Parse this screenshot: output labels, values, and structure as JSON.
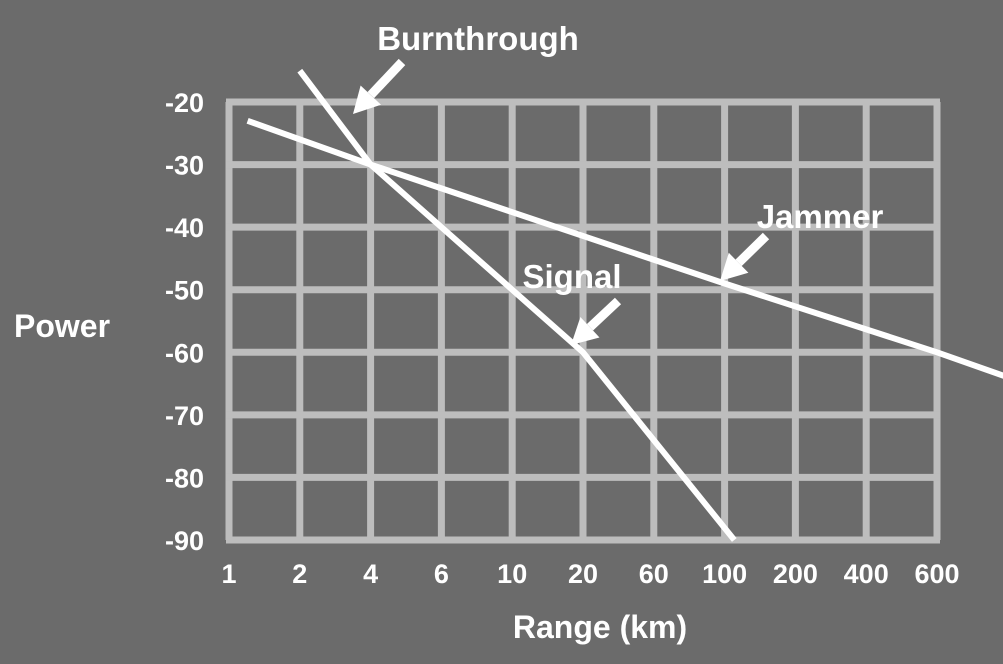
{
  "chart_data": {
    "type": "line",
    "title": "",
    "xlabel": "Range (km)",
    "ylabel": "Power",
    "x_scale": "log",
    "x_ticks": [
      "1",
      "2",
      "4",
      "6",
      "10",
      "20",
      "60",
      "100",
      "200",
      "400",
      "600"
    ],
    "y_ticks": [
      "-20",
      "-30",
      "-40",
      "-50",
      "-60",
      "-70",
      "-80",
      "-90"
    ],
    "ylim": [
      -90,
      -20
    ],
    "grid": true,
    "series": [
      {
        "name": "Jammer",
        "points": [
          {
            "x": 1.2,
            "y": -23
          },
          {
            "x": 4,
            "y": -30
          },
          {
            "x": 100,
            "y": -49
          },
          {
            "x": 600,
            "y": -60
          },
          {
            "x": 900,
            "y": -64
          }
        ]
      },
      {
        "name": "Signal",
        "points": [
          {
            "x": 2,
            "y": -15
          },
          {
            "x": 4,
            "y": -30
          },
          {
            "x": 20,
            "y": -60
          },
          {
            "x": 110,
            "y": -90
          }
        ]
      }
    ],
    "annotations": [
      {
        "text": "Burnthrough",
        "x": 3.5,
        "y": -22
      },
      {
        "text": "Jammer",
        "x": 100,
        "y": -49
      },
      {
        "text": "Signal",
        "x": 18,
        "y": -59
      }
    ],
    "colors": {
      "background": "#6b6b6b",
      "grid": "#bdbdbd",
      "lines": "#ffffff",
      "text": "#ffffff"
    }
  }
}
